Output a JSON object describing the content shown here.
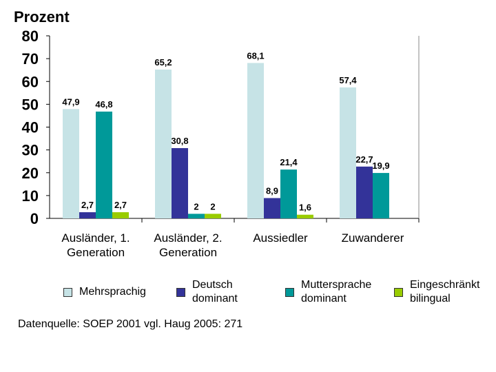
{
  "chart_data": {
    "type": "bar",
    "ylabel": "Prozent",
    "ylim": [
      0,
      80
    ],
    "yticks": [
      "0",
      "10",
      "20",
      "30",
      "40",
      "50",
      "60",
      "70",
      "80"
    ],
    "categories": [
      "Ausländer, 1. Generation",
      "Ausländer, 2. Generation",
      "Aussiedler",
      "Zuwanderer"
    ],
    "series": [
      {
        "name": "Mehrsprachig",
        "color": "#c6e3e6",
        "values": [
          47.9,
          65.2,
          68.1,
          57.4
        ],
        "labels": [
          "47,9",
          "65,2",
          "68,1",
          "57,4"
        ]
      },
      {
        "name": "Deutsch dominant",
        "color": "#333399",
        "values": [
          2.7,
          30.8,
          8.9,
          22.7
        ],
        "labels": [
          "2,7",
          "30,8",
          "8,9",
          "22,7"
        ]
      },
      {
        "name": "Muttersprache dominant",
        "color": "#009999",
        "values": [
          46.8,
          2,
          21.4,
          19.9
        ],
        "labels": [
          "46,8",
          "2",
          "21,4",
          "19,9"
        ]
      },
      {
        "name": "Eingeschränkt bilingual",
        "color": "#99cc00",
        "values": [
          2.7,
          2,
          1.6,
          null
        ],
        "labels": [
          "2,7",
          "2",
          "1,6",
          ""
        ]
      }
    ],
    "grid": false,
    "legend": "bottom"
  },
  "legend": {
    "items": [
      {
        "label": "Mehrsprachig",
        "color": "#c6e3e6"
      },
      {
        "label": "Deutsch dominant",
        "color": "#333399"
      },
      {
        "label": "Muttersprache dominant",
        "color": "#009999"
      },
      {
        "label": "Eingeschränkt bilingual",
        "color": "#99cc00"
      }
    ]
  },
  "source": "Datenquelle: SOEP 2001 vgl. Haug 2005: 271"
}
